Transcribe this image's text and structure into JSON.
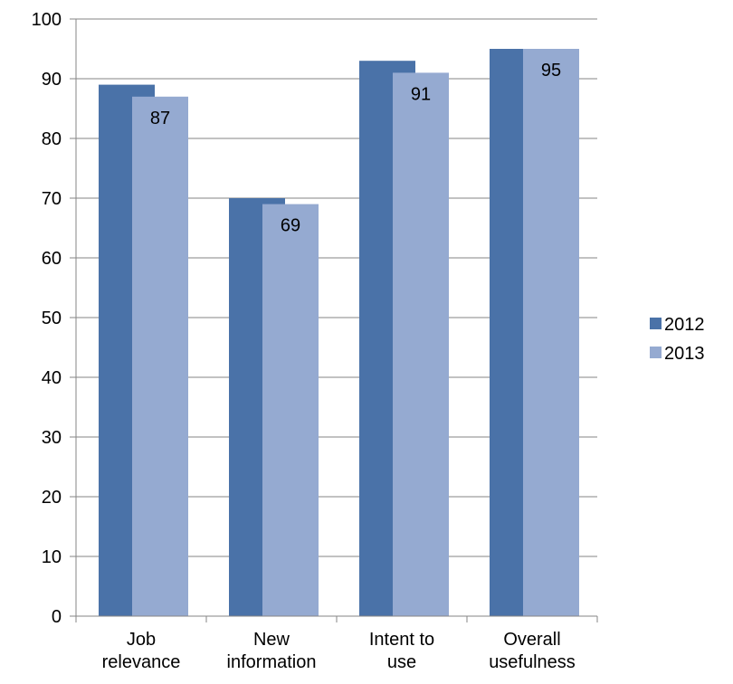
{
  "chart_data": {
    "type": "bar",
    "title": "",
    "xlabel": "",
    "ylabel": "",
    "categories": [
      [
        "Job",
        "relevance"
      ],
      [
        "New",
        "information"
      ],
      [
        "Intent to",
        "use"
      ],
      [
        "Overall",
        "usefulness"
      ]
    ],
    "series": [
      {
        "name": "2012",
        "values": [
          89,
          70,
          93,
          95
        ],
        "color": "#4A72A8",
        "data_labels": [
          null,
          null,
          null,
          null
        ]
      },
      {
        "name": "2013",
        "values": [
          87,
          69,
          91,
          95
        ],
        "color": "#95AAD1",
        "data_labels": [
          "87",
          "69",
          "91",
          "95"
        ]
      }
    ],
    "ylim": [
      0,
      100
    ],
    "yticks": [
      0,
      10,
      20,
      30,
      40,
      50,
      60,
      70,
      80,
      90,
      100
    ],
    "grid": true,
    "legend": "right"
  }
}
